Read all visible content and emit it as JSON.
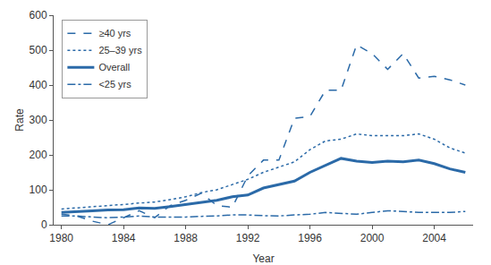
{
  "chart_data": {
    "type": "line",
    "x_label": "Year",
    "y_label": "Rate",
    "x": [
      1980,
      1981,
      1982,
      1983,
      1984,
      1985,
      1986,
      1987,
      1988,
      1989,
      1990,
      1991,
      1992,
      1993,
      1994,
      1995,
      1996,
      1997,
      1998,
      1999,
      2000,
      2001,
      2002,
      2003,
      2004,
      2005,
      2006
    ],
    "series": [
      {
        "name": "≥40 yrs",
        "color": "#2b6aa8",
        "line_style": "dash",
        "values": [
          30,
          25,
          10,
          0,
          20,
          40,
          20,
          55,
          70,
          90,
          55,
          50,
          140,
          185,
          185,
          305,
          310,
          385,
          385,
          515,
          490,
          445,
          490,
          420,
          425,
          415,
          400
        ]
      },
      {
        "name": "25–39 yrs",
        "color": "#2b6aa8",
        "line_style": "dot",
        "values": [
          45,
          48,
          52,
          55,
          58,
          62,
          65,
          72,
          80,
          92,
          100,
          115,
          130,
          150,
          165,
          180,
          215,
          240,
          245,
          260,
          255,
          255,
          255,
          260,
          245,
          220,
          205
        ]
      },
      {
        "name": "Overall",
        "color": "#2b6aa8",
        "line_style": "solid",
        "values": [
          35,
          38,
          40,
          42,
          43,
          48,
          47,
          52,
          58,
          65,
          70,
          80,
          85,
          105,
          115,
          125,
          150,
          170,
          190,
          182,
          178,
          182,
          180,
          185,
          175,
          160,
          150
        ]
      },
      {
        "name": "<25 yrs",
        "color": "#2b6aa8",
        "line_style": "dashdot",
        "values": [
          25,
          25,
          22,
          20,
          22,
          25,
          22,
          22,
          22,
          24,
          25,
          28,
          28,
          26,
          25,
          28,
          30,
          35,
          33,
          30,
          35,
          40,
          38,
          35,
          35,
          35,
          38
        ]
      }
    ],
    "xlim": [
      1979.5,
      2006.5
    ],
    "xticks": [
      1980,
      1984,
      1988,
      1992,
      1996,
      2000,
      2004
    ],
    "ylim": [
      0,
      600
    ],
    "yticks": [
      0,
      100,
      200,
      300,
      400,
      500,
      600
    ],
    "grid": false,
    "legend": "top-left"
  }
}
